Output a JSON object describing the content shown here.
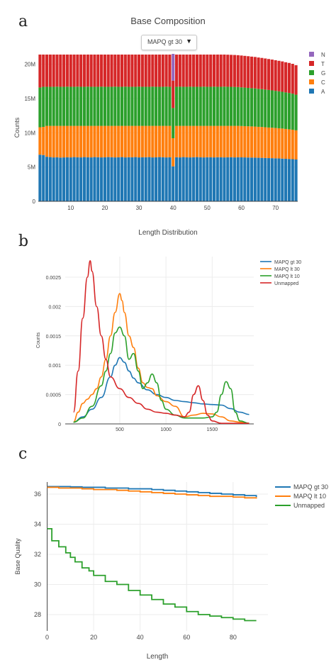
{
  "panels": {
    "a": {
      "letter": "a",
      "title": "Base Composition",
      "dropdown_value": "MAPQ gt 30",
      "dropdown_caret": "▼"
    },
    "b": {
      "letter": "b",
      "title": "Length Distribution"
    },
    "c": {
      "letter": "c"
    }
  },
  "chart_data": [
    {
      "type": "bar",
      "stacked": true,
      "title": "Base Composition",
      "ylabel": "Counts",
      "xlabel": "",
      "x_range": [
        1,
        76
      ],
      "ylim": [
        0,
        21500000
      ],
      "x_ticks": [
        10,
        20,
        30,
        40,
        50,
        60,
        70
      ],
      "x_tick_labels": [
        "10",
        "20",
        "30",
        "40",
        "50",
        "60",
        "70"
      ],
      "y_ticks": [
        0,
        5000000,
        10000000,
        15000000,
        20000000
      ],
      "y_tick_labels": [
        "0",
        "5M",
        "10M",
        "15M",
        "20M"
      ],
      "legend_position": "right",
      "grid": true,
      "series": [
        {
          "name": "A",
          "color": "#1f77b4",
          "values": [
            6800000,
            6750000,
            6500000,
            6450000,
            6400000,
            6420000,
            6380000,
            6400000,
            6420000,
            6400000,
            6450000,
            6420000,
            6400000,
            6450000,
            6420000,
            6400000,
            6450000,
            6430000,
            6400000,
            6420000,
            6450000,
            6430000,
            6400000,
            6420000,
            6450000,
            6400000,
            6430000,
            6420000,
            6450000,
            6400000,
            6420000,
            6430000,
            6450000,
            6400000,
            6420000,
            6450000,
            6430000,
            6400000,
            6420000,
            5100000,
            6430000,
            6400000,
            6450000,
            6420000,
            6400000,
            6430000,
            6450000,
            6420000,
            6400000,
            6430000,
            6420000,
            6400000,
            6430000,
            6420000,
            6400000,
            6420000,
            6430000,
            6400000,
            6420000,
            6410000,
            6400000,
            6390000,
            6380000,
            6370000,
            6350000,
            6340000,
            6320000,
            6300000,
            6290000,
            6270000,
            6250000,
            6230000,
            6200000,
            6180000,
            6150000,
            6100000
          ]
        },
        {
          "name": "C",
          "color": "#ff7f0e",
          "values": [
            4000000,
            4100000,
            4500000,
            4550000,
            4600000,
            4580000,
            4620000,
            4600000,
            4580000,
            4600000,
            4550000,
            4580000,
            4600000,
            4550000,
            4580000,
            4600000,
            4550000,
            4570000,
            4600000,
            4580000,
            4550000,
            4570000,
            4600000,
            4580000,
            4550000,
            4600000,
            4570000,
            4580000,
            4550000,
            4600000,
            4580000,
            4570000,
            4550000,
            4600000,
            4580000,
            4550000,
            4570000,
            4600000,
            4580000,
            4100000,
            4570000,
            4600000,
            4550000,
            4580000,
            4600000,
            4570000,
            4550000,
            4580000,
            4600000,
            4570000,
            4580000,
            4600000,
            4570000,
            4580000,
            4600000,
            4580000,
            4570000,
            4600000,
            4580000,
            4570000,
            4560000,
            4550000,
            4540000,
            4530000,
            4510000,
            4500000,
            4480000,
            4460000,
            4440000,
            4420000,
            4400000,
            4380000,
            4350000,
            4320000,
            4290000,
            4250000
          ]
        },
        {
          "name": "G",
          "color": "#2ca02c",
          "values": [
            5800000,
            5850000,
            5700000,
            5700000,
            5700000,
            5720000,
            5700000,
            5700000,
            5720000,
            5700000,
            5700000,
            5720000,
            5700000,
            5700000,
            5720000,
            5700000,
            5700000,
            5700000,
            5720000,
            5700000,
            5700000,
            5700000,
            5720000,
            5700000,
            5700000,
            5720000,
            5700000,
            5700000,
            5700000,
            5720000,
            5700000,
            5700000,
            5700000,
            5720000,
            5700000,
            5700000,
            5700000,
            5720000,
            5700000,
            4400000,
            5700000,
            5720000,
            5700000,
            5700000,
            5720000,
            5700000,
            5700000,
            5700000,
            5720000,
            5700000,
            5700000,
            5720000,
            5700000,
            5700000,
            5720000,
            5700000,
            5690000,
            5680000,
            5660000,
            5640000,
            5620000,
            5600000,
            5580000,
            5560000,
            5540000,
            5520000,
            5500000,
            5480000,
            5450000,
            5420000,
            5390000,
            5360000,
            5330000,
            5300000,
            5260000,
            5200000
          ]
        },
        {
          "name": "T",
          "color": "#d62728",
          "values": [
            4800000,
            4700000,
            4700000,
            4700000,
            4700000,
            4680000,
            4700000,
            4700000,
            4680000,
            4700000,
            4700000,
            4680000,
            4700000,
            4700000,
            4680000,
            4700000,
            4700000,
            4700000,
            4680000,
            4700000,
            4700000,
            4700000,
            4680000,
            4700000,
            4700000,
            4680000,
            4700000,
            4700000,
            4700000,
            4680000,
            4700000,
            4700000,
            4700000,
            4680000,
            4700000,
            4700000,
            4700000,
            4680000,
            4700000,
            4000000,
            4700000,
            4680000,
            4700000,
            4700000,
            4680000,
            4700000,
            4700000,
            4700000,
            4680000,
            4700000,
            4700000,
            4680000,
            4700000,
            4700000,
            4680000,
            4680000,
            4670000,
            4660000,
            4650000,
            4640000,
            4630000,
            4620000,
            4600000,
            4590000,
            4570000,
            4550000,
            4530000,
            4510000,
            4490000,
            4470000,
            4450000,
            4430000,
            4400000,
            4380000,
            4350000,
            4300000
          ]
        },
        {
          "name": "N",
          "color": "#9467bd",
          "values": [
            0,
            0,
            0,
            0,
            0,
            0,
            0,
            0,
            0,
            0,
            0,
            0,
            0,
            0,
            0,
            0,
            0,
            0,
            0,
            0,
            0,
            0,
            0,
            0,
            0,
            0,
            0,
            0,
            0,
            0,
            0,
            0,
            0,
            0,
            0,
            0,
            0,
            0,
            0,
            3900000,
            0,
            0,
            0,
            0,
            0,
            0,
            0,
            0,
            0,
            0,
            0,
            0,
            0,
            0,
            0,
            0,
            0,
            0,
            0,
            0,
            0,
            0,
            0,
            0,
            0,
            0,
            0,
            0,
            0,
            0,
            0,
            0,
            0,
            0,
            0,
            0
          ]
        }
      ]
    },
    {
      "type": "line",
      "title": "Length Distribution",
      "ylabel": "Counts",
      "xlabel": "",
      "xlim": [
        -90,
        1950
      ],
      "ylim": [
        0,
        0.00285
      ],
      "x_ticks": [
        500,
        1000,
        1500
      ],
      "x_tick_labels": [
        "500",
        "1000",
        "1500"
      ],
      "y_ticks": [
        0,
        0.0005,
        0.001,
        0.0015,
        0.002,
        0.0025
      ],
      "y_tick_labels": [
        "0",
        "0.0005",
        "0.001",
        "0.0015",
        "0.002",
        "0.0025"
      ],
      "legend_position": "top-right",
      "grid": true,
      "series": [
        {
          "name": "MAPQ gt 30",
          "color": "#1f77b4",
          "x": [
            0,
            100,
            200,
            300,
            400,
            450,
            500,
            550,
            600,
            650,
            700,
            800,
            900,
            1000,
            1100,
            1200,
            1300,
            1400,
            1500,
            1600,
            1700,
            1800,
            1900
          ],
          "y": [
            3e-05,
            0.00012,
            0.00025,
            0.00045,
            0.0008,
            0.001,
            0.00113,
            0.00105,
            0.0009,
            0.00078,
            0.0007,
            0.00058,
            0.0005,
            0.00045,
            0.0004,
            0.00038,
            0.00036,
            0.00034,
            0.00033,
            0.00032,
            0.00026,
            0.0002,
            0.00016
          ]
        },
        {
          "name": "MAPQ lt 30",
          "color": "#ff7f0e",
          "x": [
            0,
            50,
            100,
            150,
            200,
            250,
            300,
            350,
            400,
            450,
            500,
            525,
            550,
            600,
            650,
            700,
            750,
            800,
            850,
            900,
            1000,
            1100,
            1200,
            1300,
            1400,
            1500,
            1600,
            1700,
            1800,
            1900
          ],
          "y": [
            3e-05,
            0.0002,
            0.00035,
            0.00042,
            0.0005,
            0.0006,
            0.0008,
            0.0011,
            0.0015,
            0.0019,
            0.00222,
            0.0021,
            0.0019,
            0.0015,
            0.0013,
            0.00095,
            0.0007,
            0.00062,
            0.0006,
            0.00048,
            0.00038,
            0.0003,
            0.00012,
            0.00015,
            0.00018,
            0.00017,
            0.00012,
            5e-05,
            3e-05,
            1e-05
          ]
        },
        {
          "name": "MAPQ lt 10",
          "color": "#2ca02c",
          "x": [
            0,
            100,
            200,
            300,
            350,
            400,
            450,
            500,
            550,
            600,
            650,
            700,
            750,
            800,
            850,
            900,
            950,
            1000,
            1100,
            1200,
            1300,
            1400,
            1500,
            1550,
            1600,
            1650,
            1700,
            1750,
            1800,
            1900
          ],
          "y": [
            3e-05,
            0.0001,
            0.0003,
            0.00065,
            0.0009,
            0.0012,
            0.00155,
            0.00165,
            0.0015,
            0.0011,
            0.0012,
            0.0009,
            0.0006,
            0.0007,
            0.00085,
            0.0007,
            0.0004,
            0.00025,
            0.00015,
            0.0001,
            0.0001,
            0.0001,
            0.00012,
            0.0002,
            0.0005,
            0.00072,
            0.0006,
            0.0002,
            5e-05,
            1e-05
          ]
        },
        {
          "name": "Unmapped",
          "color": "#d62728",
          "x": [
            0,
            50,
            100,
            150,
            180,
            200,
            250,
            300,
            350,
            400,
            500,
            600,
            700,
            800,
            900,
            1000,
            1100,
            1200,
            1250,
            1300,
            1350,
            1400,
            1450,
            1500,
            1600,
            1700,
            1800,
            1900
          ],
          "y": [
            0.0002,
            0.0009,
            0.0018,
            0.0025,
            0.00278,
            0.0026,
            0.002,
            0.0015,
            0.0011,
            0.0008,
            0.0006,
            0.00045,
            0.00035,
            0.00025,
            0.0002,
            0.00018,
            0.00015,
            0.00012,
            0.0002,
            0.0005,
            0.00065,
            0.0004,
            0.00015,
            5e-05,
            1e-05,
            1e-05,
            1e-05,
            1e-05
          ]
        }
      ]
    },
    {
      "type": "line",
      "title": "",
      "ylabel": "Base Quality",
      "xlabel": "Length",
      "xlim": [
        -2,
        95
      ],
      "ylim": [
        27.2,
        36.8
      ],
      "x_ticks": [
        0,
        20,
        40,
        60,
        80
      ],
      "x_tick_labels": [
        "0",
        "20",
        "40",
        "60",
        "80"
      ],
      "y_ticks": [
        28,
        30,
        32,
        34,
        36
      ],
      "y_tick_labels": [
        "28",
        "30",
        "32",
        "34",
        "36"
      ],
      "legend_position": "top-right",
      "grid": true,
      "series": [
        {
          "name": "MAPQ gt 30",
          "color": "#1f77b4",
          "x": [
            0,
            5,
            10,
            15,
            20,
            25,
            30,
            35,
            40,
            45,
            50,
            55,
            60,
            65,
            70,
            75,
            80,
            85,
            90
          ],
          "y": [
            36.5,
            36.5,
            36.48,
            36.45,
            36.45,
            36.4,
            36.4,
            36.35,
            36.35,
            36.3,
            36.25,
            36.2,
            36.15,
            36.1,
            36.05,
            36.0,
            35.95,
            35.9,
            35.8
          ]
        },
        {
          "name": "MAPQ lt 10",
          "color": "#ff7f0e",
          "x": [
            0,
            5,
            10,
            15,
            20,
            25,
            30,
            35,
            40,
            45,
            50,
            55,
            60,
            65,
            70,
            75,
            80,
            85,
            90
          ],
          "y": [
            36.45,
            36.4,
            36.4,
            36.35,
            36.3,
            36.3,
            36.25,
            36.2,
            36.15,
            36.1,
            36.05,
            36.0,
            35.95,
            35.9,
            35.85,
            35.85,
            35.8,
            35.75,
            35.7
          ]
        },
        {
          "name": "Unmapped",
          "color": "#2ca02c",
          "x": [
            0,
            2,
            5,
            8,
            10,
            12,
            15,
            18,
            20,
            25,
            30,
            35,
            40,
            45,
            50,
            55,
            60,
            65,
            70,
            75,
            80,
            85,
            90
          ],
          "y": [
            33.7,
            32.9,
            32.5,
            32.1,
            31.8,
            31.5,
            31.1,
            30.9,
            30.6,
            30.2,
            30.0,
            29.6,
            29.3,
            29.0,
            28.7,
            28.5,
            28.2,
            28.0,
            27.9,
            27.8,
            27.7,
            27.6,
            27.6
          ]
        }
      ]
    }
  ]
}
